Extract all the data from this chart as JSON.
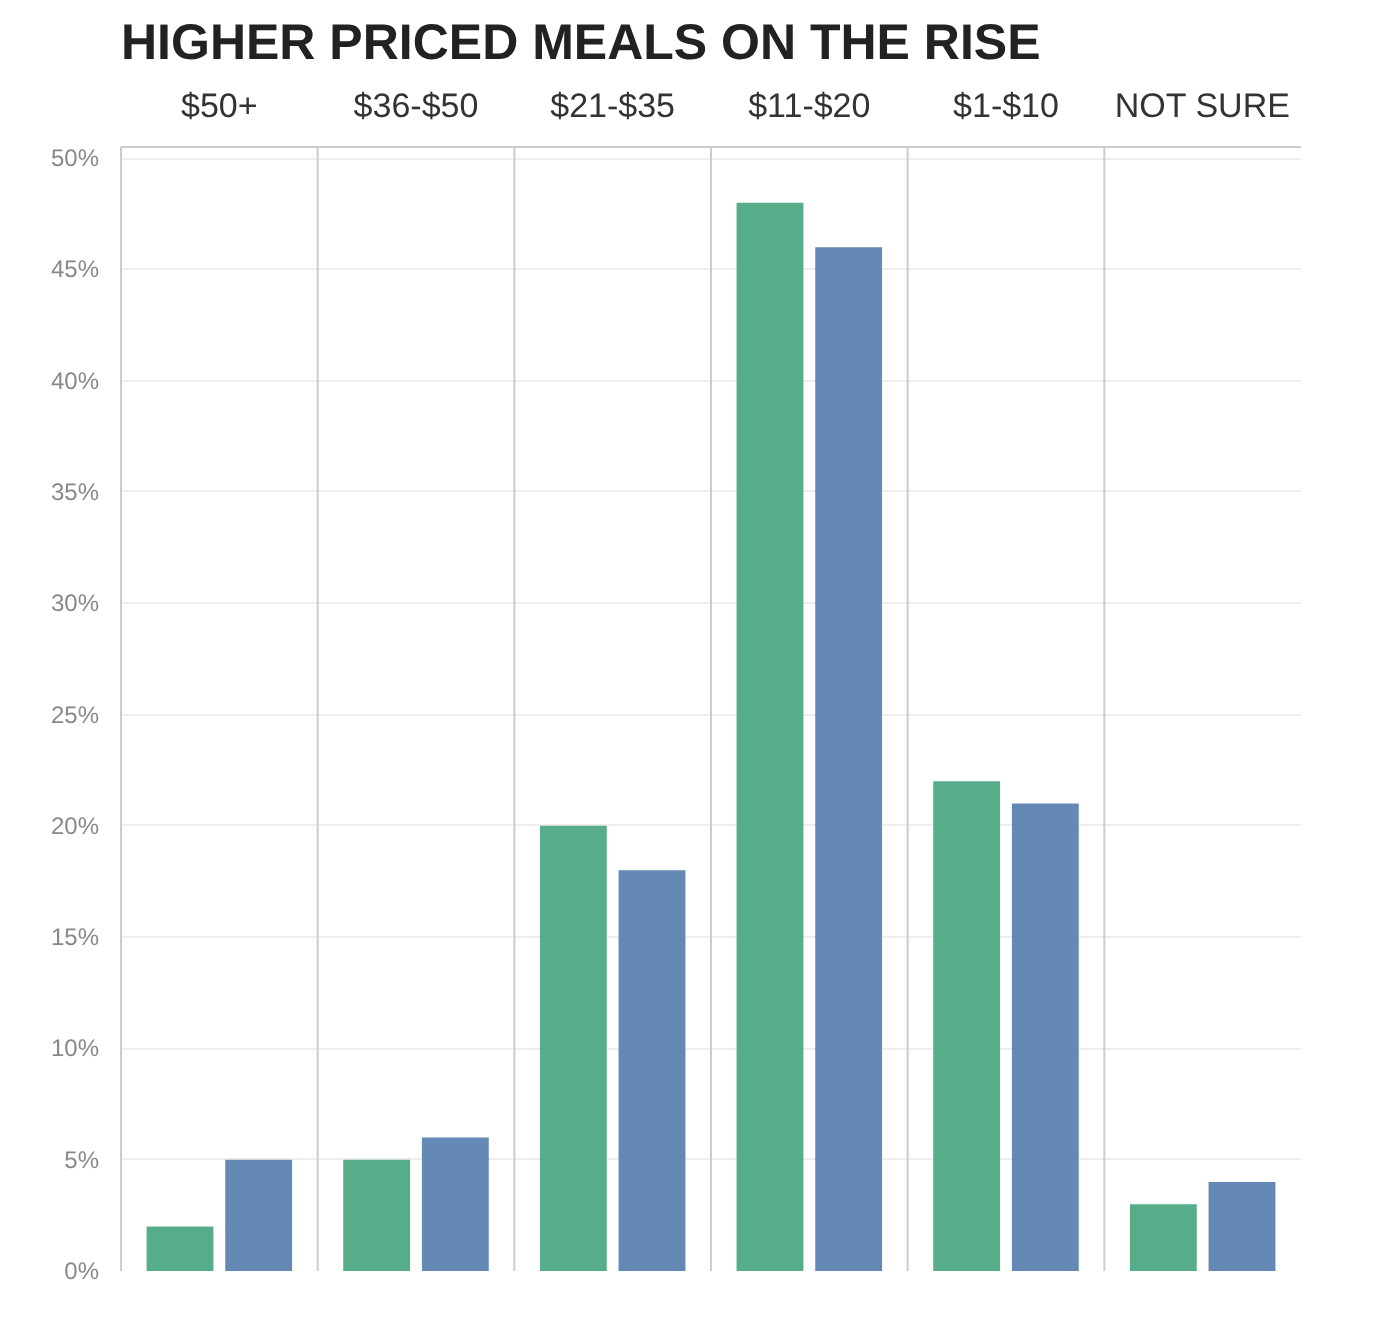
{
  "chart_data": {
    "type": "bar",
    "title": "HIGHER PRICED MEALS ON THE RISE",
    "categories": [
      "$50+",
      "$36-$50",
      "$21-$35",
      "$11-$20",
      "$1-$10",
      "NOT SURE"
    ],
    "series": [
      {
        "color": "#57ad8a",
        "values": [
          2,
          5,
          20,
          48,
          22,
          3
        ]
      },
      {
        "color": "#6389b4",
        "values": [
          5,
          6,
          18,
          46,
          21,
          4
        ]
      }
    ],
    "ylim": [
      0,
      50.5
    ],
    "yticks": [
      {
        "value": 0,
        "label": "0%"
      },
      {
        "value": 5,
        "label": "5%"
      },
      {
        "value": 10,
        "label": "10%"
      },
      {
        "value": 15,
        "label": "15%"
      },
      {
        "value": 20,
        "label": "20%"
      },
      {
        "value": 25,
        "label": "25%"
      },
      {
        "value": 30,
        "label": "30%"
      },
      {
        "value": 35,
        "label": "35%"
      },
      {
        "value": 40,
        "label": "40%"
      },
      {
        "value": 45,
        "label": "45%"
      },
      {
        "value": 50,
        "label": "50%"
      }
    ],
    "grid": "y"
  }
}
